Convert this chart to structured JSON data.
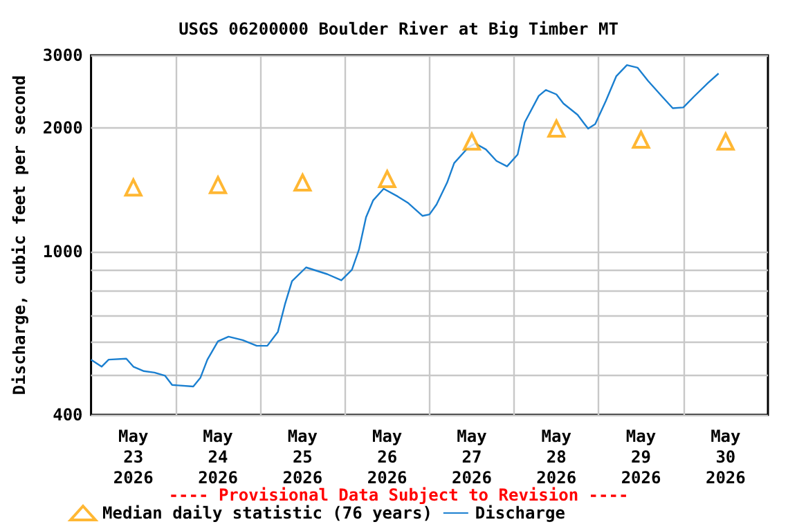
{
  "chart_data": {
    "type": "line",
    "title": "USGS 06200000 Boulder River at Big Timber MT",
    "ylabel": "Discharge, cubic feet per second",
    "annotations": [
      "---- Provisional Data Subject to Revision ----"
    ],
    "log": "y",
    "grid": true,
    "legend": "bottom left",
    "xlim": [
      "2026-05-23T00:00",
      "2026-05-31T00:00"
    ],
    "xticks": [
      {
        "value": "2026-05-23T12:00",
        "label": "May\n23\n2026"
      },
      {
        "value": "2026-05-24T12:00",
        "label": "May\n24\n2026"
      },
      {
        "value": "2026-05-25T12:00",
        "label": "May\n25\n2026"
      },
      {
        "value": "2026-05-26T12:00",
        "label": "May\n26\n2026"
      },
      {
        "value": "2026-05-27T12:00",
        "label": "May\n27\n2026"
      },
      {
        "value": "2026-05-28T12:00",
        "label": "May\n28\n2026"
      },
      {
        "value": "2026-05-29T12:00",
        "label": "May\n29\n2026"
      },
      {
        "value": "2026-05-30T12:00",
        "label": "May\n30\n2026"
      },
      {
        "value": "2026-05-24T00:00",
        "label": null
      },
      {
        "value": "2026-05-25T00:00",
        "label": null
      },
      {
        "value": "2026-05-26T00:00",
        "label": null
      },
      {
        "value": "2026-05-27T00:00",
        "label": null
      },
      {
        "value": "2026-05-28T00:00",
        "label": null
      },
      {
        "value": "2026-05-29T00:00",
        "label": null
      },
      {
        "value": "2026-05-30T00:00",
        "label": null
      }
    ],
    "ylim": [
      400,
      3000
    ],
    "yticks": [
      400,
      {
        "value": 500,
        "label": null
      },
      {
        "value": 600,
        "label": null
      },
      {
        "value": 700,
        "label": null
      },
      {
        "value": 800,
        "label": null
      },
      {
        "value": 900,
        "label": null
      },
      1000,
      2000,
      3000
    ],
    "series": [
      {
        "name": "Median daily statistic (76 years)",
        "type": "scatter",
        "marker": "triangle",
        "color": "#ffa500",
        "x": [
          "2026-05-23T12:00",
          "2026-05-24T12:00",
          "2026-05-25T12:00",
          "2026-05-26T12:00",
          "2026-05-27T12:00",
          "2026-05-28T12:00",
          "2026-05-29T12:00",
          "2026-05-30T12:00"
        ],
        "values": [
          1430,
          1450,
          1470,
          1500,
          1850,
          1990,
          1870,
          1850
        ]
      },
      {
        "name": "Discharge",
        "marker": "none",
        "color": "#1a7fd0",
        "x": [
          "2026-05-23T00:00",
          "2026-05-23T03:00",
          "2026-05-23T05:00",
          "2026-05-23T10:00",
          "2026-05-23T12:00",
          "2026-05-23T15:00",
          "2026-05-23T18:00",
          "2026-05-23T21:00",
          "2026-05-23T23:00",
          "2026-05-24T05:00",
          "2026-05-24T07:00",
          "2026-05-24T09:00",
          "2026-05-24T12:00",
          "2026-05-24T15:00",
          "2026-05-24T19:00",
          "2026-05-24T23:00",
          "2026-05-25T02:00",
          "2026-05-25T05:00",
          "2026-05-25T07:00",
          "2026-05-25T09:00",
          "2026-05-25T13:00",
          "2026-05-25T19:00",
          "2026-05-25T23:00",
          "2026-05-26T02:00",
          "2026-05-26T04:00",
          "2026-05-26T06:00",
          "2026-05-26T08:00",
          "2026-05-26T11:00",
          "2026-05-26T15:00",
          "2026-05-26T18:00",
          "2026-05-26T22:00",
          "2026-05-27T00:00",
          "2026-05-27T02:00",
          "2026-05-27T05:00",
          "2026-05-27T07:00",
          "2026-05-27T11:00",
          "2026-05-27T13:00",
          "2026-05-27T16:00",
          "2026-05-27T19:00",
          "2026-05-27T22:00",
          "2026-05-28T01:00",
          "2026-05-28T03:00",
          "2026-05-28T07:00",
          "2026-05-28T09:00",
          "2026-05-28T12:00",
          "2026-05-28T14:00",
          "2026-05-28T18:00",
          "2026-05-28T20:00",
          "2026-05-28T21:00",
          "2026-05-28T23:00",
          "2026-05-29T02:00",
          "2026-05-29T05:00",
          "2026-05-29T08:00",
          "2026-05-29T11:00",
          "2026-05-29T14:00",
          "2026-05-29T18:00",
          "2026-05-29T21:00",
          "2026-05-30T00:00",
          "2026-05-30T03:00",
          "2026-05-30T07:00",
          "2026-05-30T10:00"
        ],
        "values": [
          545,
          524,
          545,
          548,
          524,
          511,
          507,
          498,
          473,
          469,
          492,
          545,
          604,
          620,
          608,
          589,
          589,
          637,
          743,
          846,
          914,
          880,
          850,
          902,
          1010,
          1210,
          1330,
          1420,
          1360,
          1310,
          1220,
          1230,
          1300,
          1470,
          1640,
          1790,
          1830,
          1770,
          1660,
          1610,
          1720,
          2060,
          2390,
          2470,
          2410,
          2290,
          2150,
          2040,
          1990,
          2040,
          2320,
          2670,
          2840,
          2800,
          2600,
          2380,
          2230,
          2240,
          2380,
          2570,
          2710
        ]
      }
    ]
  }
}
